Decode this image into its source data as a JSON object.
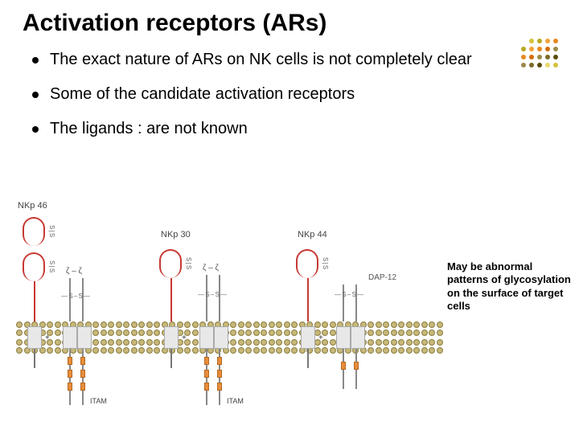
{
  "title": "Activation receptors (ARs)",
  "bullets": [
    "The exact nature of ARs on NK cells is not completely clear",
    "Some of the candidate activation receptors",
    "The ligands : are not known"
  ],
  "side_note": "May be abnormal patterns of glycosylation on the surface of target cells",
  "receptors": {
    "r1": {
      "label": "NKp 46",
      "adaptor": "ζ – ζ",
      "itam_label": "ITAM"
    },
    "r2": {
      "label": "NKp 30",
      "adaptor": "ζ – ζ",
      "itam_label": "ITAM"
    },
    "r3": {
      "label": "NKp 44",
      "adaptor": "DAP-12",
      "itam_label": ""
    },
    "disulfide_v": "S | S",
    "disulfide_h": "— S – S —"
  },
  "deco_colors": [
    "#e8d96a",
    "#d4c23a",
    "#b8a820",
    "#f2a23a",
    "#e88820",
    "#d46e0a",
    "#9a8a4a",
    "#7a6a2a",
    "#5a4a0a"
  ],
  "colors": {
    "ig": "#c73832",
    "lipid": "#c7b879",
    "itam": "#e88d3a",
    "text": "#000000"
  },
  "style": {
    "title_fontsize": 30,
    "bullet_fontsize": 20,
    "sidenote_fontsize": 13,
    "background": "#ffffff"
  }
}
